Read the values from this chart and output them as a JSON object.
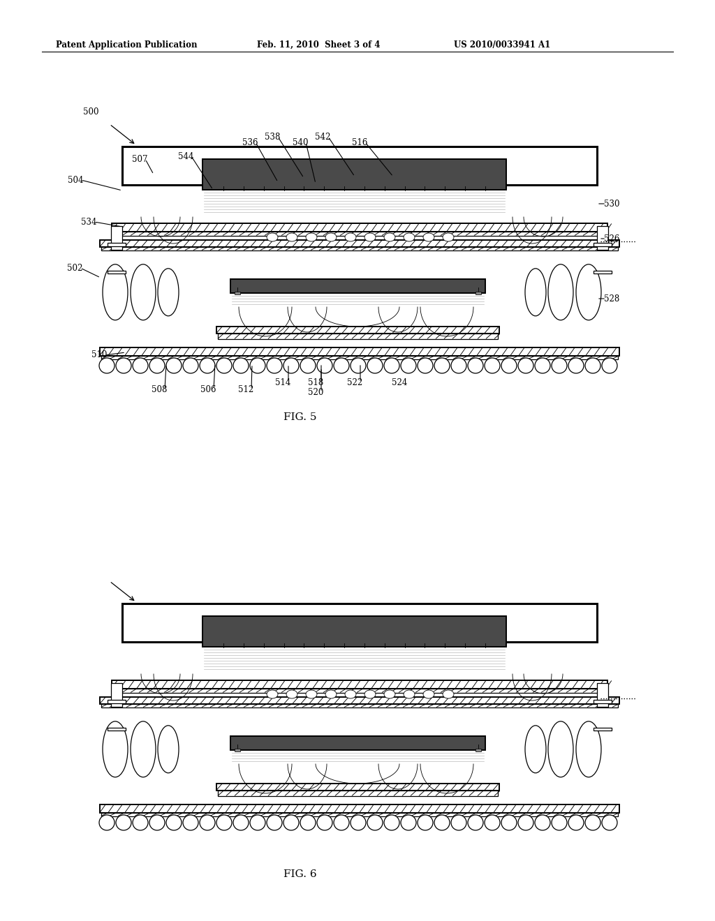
{
  "bg_color": "#ffffff",
  "header_left": "Patent Application Publication",
  "header_center": "Feb. 11, 2010  Sheet 3 of 4",
  "header_right": "US 2010/0033941 A1",
  "fig5_label": "FIG. 5",
  "fig6_label": "FIG. 6"
}
